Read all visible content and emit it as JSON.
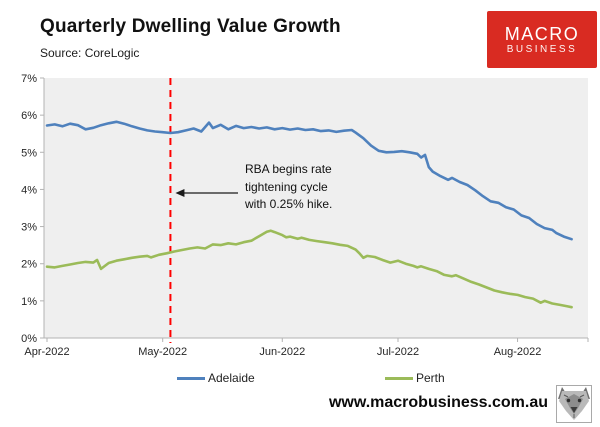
{
  "header": {
    "title": "Quarterly Dwelling Value Growth",
    "source": "Source: CoreLogic",
    "logo": {
      "line1": "MACRO",
      "line2": "BUSINESS",
      "bg_color": "#d92b22",
      "text_color": "#ffffff"
    }
  },
  "chart_data": {
    "type": "line",
    "title": "Quarterly Dwelling Value Growth",
    "subtitle": "Source: CoreLogic",
    "plot_bg": "#efefef",
    "axis_color": "#b3b3b3",
    "label_color": "#262626",
    "grid": "off",
    "x_axis": {
      "unit": "days since 2022-04-01",
      "tick_days": [
        0,
        30,
        61,
        91,
        122
      ],
      "tick_labels": [
        "Apr-2022",
        "May-2022",
        "Jun-2022",
        "Jul-2022",
        "Aug-2022"
      ]
    },
    "y_axis": {
      "min": 0,
      "max": 7,
      "tick_step": 1,
      "tick_labels": [
        "0%",
        "1%",
        "2%",
        "3%",
        "4%",
        "5%",
        "6%",
        "7%"
      ]
    },
    "event_line": {
      "day": 32,
      "date": "May-2022 (3rd)",
      "color": "#ff0000",
      "style": "dashed"
    },
    "annotation": {
      "lines": [
        "RBA begins rate",
        "tightening cycle",
        "with 0.25% hike."
      ],
      "arrow_to_day": 32
    },
    "series": [
      {
        "name": "Adelaide",
        "color": "#4f81bd",
        "points": [
          [
            0,
            5.72
          ],
          [
            2,
            5.75
          ],
          [
            4,
            5.7
          ],
          [
            6,
            5.77
          ],
          [
            8,
            5.73
          ],
          [
            10,
            5.62
          ],
          [
            12,
            5.66
          ],
          [
            14,
            5.73
          ],
          [
            16,
            5.78
          ],
          [
            18,
            5.82
          ],
          [
            20,
            5.77
          ],
          [
            22,
            5.7
          ],
          [
            24,
            5.64
          ],
          [
            26,
            5.59
          ],
          [
            28,
            5.56
          ],
          [
            30,
            5.54
          ],
          [
            32,
            5.52
          ],
          [
            34,
            5.54
          ],
          [
            36,
            5.59
          ],
          [
            38,
            5.64
          ],
          [
            40,
            5.56
          ],
          [
            42,
            5.8
          ],
          [
            43,
            5.65
          ],
          [
            45,
            5.74
          ],
          [
            47,
            5.62
          ],
          [
            49,
            5.71
          ],
          [
            51,
            5.65
          ],
          [
            53,
            5.68
          ],
          [
            55,
            5.64
          ],
          [
            57,
            5.67
          ],
          [
            59,
            5.62
          ],
          [
            61,
            5.65
          ],
          [
            63,
            5.61
          ],
          [
            65,
            5.64
          ],
          [
            67,
            5.6
          ],
          [
            69,
            5.62
          ],
          [
            71,
            5.57
          ],
          [
            73,
            5.59
          ],
          [
            75,
            5.55
          ],
          [
            77,
            5.58
          ],
          [
            79,
            5.6
          ],
          [
            80,
            5.53
          ],
          [
            82,
            5.38
          ],
          [
            84,
            5.18
          ],
          [
            86,
            5.04
          ],
          [
            88,
            5.0
          ],
          [
            90,
            5.01
          ],
          [
            92,
            5.03
          ],
          [
            94,
            5.0
          ],
          [
            96,
            4.96
          ],
          [
            97,
            4.86
          ],
          [
            98,
            4.93
          ],
          [
            99,
            4.6
          ],
          [
            100,
            4.48
          ],
          [
            102,
            4.36
          ],
          [
            104,
            4.26
          ],
          [
            105,
            4.31
          ],
          [
            107,
            4.2
          ],
          [
            109,
            4.12
          ],
          [
            111,
            3.98
          ],
          [
            113,
            3.82
          ],
          [
            115,
            3.68
          ],
          [
            117,
            3.64
          ],
          [
            119,
            3.52
          ],
          [
            121,
            3.46
          ],
          [
            123,
            3.3
          ],
          [
            125,
            3.23
          ],
          [
            127,
            3.07
          ],
          [
            129,
            2.96
          ],
          [
            131,
            2.91
          ],
          [
            132,
            2.83
          ],
          [
            134,
            2.73
          ],
          [
            136,
            2.66
          ]
        ]
      },
      {
        "name": "Perth",
        "color": "#9bbb59",
        "points": [
          [
            0,
            1.92
          ],
          [
            2,
            1.9
          ],
          [
            4,
            1.94
          ],
          [
            6,
            1.98
          ],
          [
            8,
            2.02
          ],
          [
            10,
            2.05
          ],
          [
            12,
            2.03
          ],
          [
            13,
            2.1
          ],
          [
            14,
            1.86
          ],
          [
            15,
            1.94
          ],
          [
            16,
            2.02
          ],
          [
            18,
            2.08
          ],
          [
            20,
            2.12
          ],
          [
            22,
            2.16
          ],
          [
            24,
            2.19
          ],
          [
            26,
            2.21
          ],
          [
            27,
            2.17
          ],
          [
            29,
            2.24
          ],
          [
            31,
            2.28
          ],
          [
            33,
            2.33
          ],
          [
            35,
            2.37
          ],
          [
            37,
            2.41
          ],
          [
            39,
            2.44
          ],
          [
            41,
            2.41
          ],
          [
            43,
            2.52
          ],
          [
            45,
            2.5
          ],
          [
            47,
            2.55
          ],
          [
            49,
            2.52
          ],
          [
            51,
            2.58
          ],
          [
            53,
            2.62
          ],
          [
            55,
            2.74
          ],
          [
            57,
            2.86
          ],
          [
            58,
            2.89
          ],
          [
            59,
            2.85
          ],
          [
            61,
            2.77
          ],
          [
            62,
            2.71
          ],
          [
            63,
            2.73
          ],
          [
            65,
            2.67
          ],
          [
            66,
            2.7
          ],
          [
            68,
            2.64
          ],
          [
            70,
            2.61
          ],
          [
            72,
            2.58
          ],
          [
            74,
            2.55
          ],
          [
            76,
            2.51
          ],
          [
            78,
            2.48
          ],
          [
            80,
            2.38
          ],
          [
            81,
            2.28
          ],
          [
            82,
            2.16
          ],
          [
            83,
            2.21
          ],
          [
            85,
            2.18
          ],
          [
            87,
            2.1
          ],
          [
            89,
            2.03
          ],
          [
            91,
            2.08
          ],
          [
            93,
            2.0
          ],
          [
            95,
            1.94
          ],
          [
            96,
            1.9
          ],
          [
            97,
            1.93
          ],
          [
            99,
            1.86
          ],
          [
            101,
            1.8
          ],
          [
            103,
            1.7
          ],
          [
            105,
            1.66
          ],
          [
            106,
            1.69
          ],
          [
            108,
            1.6
          ],
          [
            110,
            1.51
          ],
          [
            112,
            1.44
          ],
          [
            114,
            1.36
          ],
          [
            116,
            1.28
          ],
          [
            118,
            1.23
          ],
          [
            120,
            1.19
          ],
          [
            122,
            1.16
          ],
          [
            124,
            1.1
          ],
          [
            126,
            1.06
          ],
          [
            128,
            0.95
          ],
          [
            129,
            1.0
          ],
          [
            131,
            0.93
          ],
          [
            133,
            0.89
          ],
          [
            135,
            0.85
          ],
          [
            136,
            0.83
          ]
        ]
      }
    ]
  },
  "legend": {
    "items": [
      {
        "label": "Adelaide",
        "color": "#4f81bd"
      },
      {
        "label": "Perth",
        "color": "#9bbb59"
      }
    ]
  },
  "footer": {
    "url": "www.macrobusiness.com.au",
    "logo_icon": "wolf-logo-icon"
  }
}
